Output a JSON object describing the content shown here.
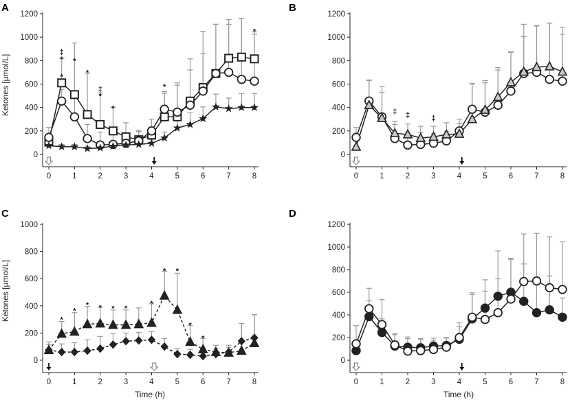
{
  "chart_data": [
    {
      "panel": "A",
      "type": "line",
      "ylabel": "Ketones [µmol/L]",
      "xlabel": "",
      "xlim": [
        0,
        8
      ],
      "ylim": [
        0,
        1200
      ],
      "yticks": [
        0,
        200,
        400,
        600,
        800,
        1000,
        1200
      ],
      "xticks": [
        0,
        1,
        2,
        3,
        4,
        5,
        6,
        7,
        8
      ],
      "series": [
        {
          "name": "square",
          "marker": "square",
          "dash": false,
          "fill": "#ffffff",
          "stroke": "#222222",
          "err": "#9a9a9a",
          "x": [
            0,
            0.5,
            1,
            1.5,
            2,
            2.5,
            3,
            3.5,
            4,
            4.5,
            5,
            5.5,
            6,
            6.5,
            7,
            7.5,
            8
          ],
          "y": [
            105,
            610,
            510,
            340,
            255,
            200,
            150,
            125,
            165,
            320,
            320,
            455,
            570,
            690,
            820,
            830,
            815
          ],
          "err_up": [
            45,
            210,
            440,
            350,
            270,
            200,
            120,
            80,
            70,
            200,
            290,
            360,
            480,
            420,
            290,
            330,
            230
          ]
        },
        {
          "name": "circle",
          "marker": "circle",
          "dash": false,
          "fill": "#ffffff",
          "stroke": "#222222",
          "err": "#9a9a9a",
          "x": [
            0,
            0.5,
            1,
            1.5,
            2,
            2.5,
            3,
            3.5,
            4,
            4.5,
            5,
            5.5,
            6,
            6.5,
            7,
            7.5,
            8
          ],
          "y": [
            145,
            455,
            320,
            135,
            80,
            85,
            95,
            115,
            200,
            385,
            360,
            420,
            540,
            690,
            700,
            640,
            625
          ],
          "err_up": [
            85,
            100,
            180,
            120,
            110,
            100,
            80,
            80,
            100,
            150,
            230,
            300,
            320,
            420,
            450,
            520,
            400
          ]
        },
        {
          "name": "star",
          "marker": "star",
          "dash": false,
          "fill": "#222222",
          "stroke": "#222222",
          "err": "#9a9a9a",
          "x": [
            0,
            0.5,
            1,
            1.5,
            2,
            2.5,
            3,
            3.5,
            4,
            4.5,
            5,
            5.5,
            6,
            6.5,
            7,
            7.5,
            8
          ],
          "y": [
            75,
            65,
            65,
            50,
            55,
            70,
            80,
            85,
            95,
            140,
            225,
            255,
            305,
            405,
            390,
            400,
            400
          ],
          "err_up": [
            25,
            20,
            20,
            20,
            20,
            25,
            25,
            25,
            30,
            50,
            80,
            100,
            100,
            110,
            90,
            120,
            120
          ]
        }
      ],
      "annotations": [
        {
          "x": 0.5,
          "y": 815,
          "text": "*"
        },
        {
          "x": 0.5,
          "y": 875,
          "text": "‡"
        },
        {
          "x": 0.5,
          "y": 665,
          "text": "*"
        },
        {
          "x": 1,
          "y": 800,
          "text": "*"
        },
        {
          "x": 1.5,
          "y": 700,
          "text": "*"
        },
        {
          "x": 2,
          "y": 500,
          "text": "*"
        },
        {
          "x": 2,
          "y": 560,
          "text": "‡"
        },
        {
          "x": 2.5,
          "y": 395,
          "text": "*"
        },
        {
          "x": 4.5,
          "y": 580,
          "text": "*"
        },
        {
          "x": 8,
          "y": 1050,
          "text": "*"
        }
      ],
      "arrows": [
        {
          "x": 0,
          "style": "open"
        },
        {
          "x": 4.1,
          "style": "solid"
        }
      ]
    },
    {
      "panel": "B",
      "type": "line",
      "ylabel": "",
      "xlabel": "",
      "xlim": [
        0,
        8
      ],
      "ylim": [
        0,
        1200
      ],
      "yticks": [
        0,
        200,
        400,
        600,
        800,
        1000,
        1200
      ],
      "xticks": [
        0,
        1,
        2,
        3,
        4,
        5,
        6,
        7,
        8
      ],
      "series": [
        {
          "name": "circle",
          "marker": "circle",
          "dash": false,
          "fill": "#ffffff",
          "stroke": "#222222",
          "err": "#9a9a9a",
          "x": [
            0,
            0.5,
            1,
            1.5,
            2,
            2.5,
            3,
            3.5,
            4,
            4.5,
            5,
            5.5,
            6,
            6.5,
            7,
            7.5,
            8
          ],
          "y": [
            145,
            455,
            320,
            135,
            80,
            85,
            95,
            115,
            200,
            385,
            360,
            420,
            540,
            690,
            700,
            640,
            625
          ],
          "err_up": [
            85,
            180,
            260,
            120,
            110,
            100,
            80,
            80,
            100,
            220,
            250,
            300,
            330,
            420,
            400,
            480,
            400
          ]
        },
        {
          "name": "triangle",
          "marker": "triangle",
          "dash": false,
          "fill": "#c8c8c8",
          "stroke": "#222222",
          "err": "#9a9a9a",
          "x": [
            0,
            0.5,
            1,
            1.5,
            2,
            2.5,
            3,
            3.5,
            4,
            4.5,
            5,
            5.5,
            6,
            6.5,
            7,
            7.5,
            8
          ],
          "y": [
            65,
            420,
            310,
            180,
            170,
            140,
            150,
            170,
            175,
            300,
            380,
            490,
            615,
            705,
            745,
            750,
            705
          ],
          "err_up": [
            100,
            210,
            220,
            100,
            90,
            100,
            90,
            100,
            90,
            300,
            250,
            250,
            260,
            300,
            350,
            370,
            380
          ]
        }
      ],
      "annotations": [
        {
          "x": 1.5,
          "y": 370,
          "text": "‡"
        },
        {
          "x": 2,
          "y": 340,
          "text": "‡"
        },
        {
          "x": 3,
          "y": 310,
          "text": "‡"
        }
      ],
      "arrows": [
        {
          "x": 0,
          "style": "open"
        },
        {
          "x": 4.1,
          "style": "solid"
        }
      ]
    },
    {
      "panel": "C",
      "type": "line",
      "ylabel": "Ketones [µmol/L]",
      "xlabel": "Time (h)",
      "xlim": [
        0,
        8
      ],
      "ylim": [
        0,
        1000
      ],
      "yticks": [
        0,
        200,
        400,
        600,
        800,
        1000
      ],
      "xticks": [
        0,
        1,
        2,
        3,
        4,
        5,
        6,
        7,
        8
      ],
      "series": [
        {
          "name": "triangle",
          "marker": "triangle",
          "dash": true,
          "fill": "#222222",
          "stroke": "#222222",
          "err": "#9a9a9a",
          "x": [
            0,
            0.5,
            1,
            1.5,
            2,
            2.5,
            3,
            3.5,
            4,
            4.5,
            5,
            5.5,
            6,
            6.5,
            7,
            7.5,
            8
          ],
          "y": [
            75,
            195,
            210,
            265,
            270,
            260,
            260,
            265,
            275,
            475,
            370,
            135,
            80,
            60,
            55,
            70,
            125
          ],
          "err_up": [
            40,
            90,
            140,
            130,
            120,
            110,
            110,
            120,
            140,
            180,
            270,
            120,
            80,
            50,
            40,
            200,
            210
          ]
        },
        {
          "name": "diamond",
          "marker": "diamond",
          "dash": true,
          "fill": "#222222",
          "stroke": "#222222",
          "err": "#9a9a9a",
          "x": [
            0,
            0.5,
            1,
            1.5,
            2,
            2.5,
            3,
            3.5,
            4,
            4.5,
            5,
            5.5,
            6,
            6.5,
            7,
            7.5,
            8
          ],
          "y": [
            75,
            60,
            60,
            70,
            85,
            115,
            140,
            145,
            150,
            100,
            45,
            40,
            30,
            45,
            60,
            140,
            165
          ],
          "err_up": [
            60,
            60,
            70,
            80,
            90,
            80,
            60,
            60,
            60,
            60,
            40,
            40,
            30,
            40,
            50,
            130,
            170
          ]
        }
      ],
      "annotations": [
        {
          "x": 0.5,
          "y": 300,
          "text": "*"
        },
        {
          "x": 1,
          "y": 365,
          "text": "*"
        },
        {
          "x": 1.5,
          "y": 410,
          "text": "*"
        },
        {
          "x": 2,
          "y": 390,
          "text": "*"
        },
        {
          "x": 2.5,
          "y": 385,
          "text": "*"
        },
        {
          "x": 3,
          "y": 385,
          "text": "*"
        },
        {
          "x": 4,
          "y": 420,
          "text": "*"
        },
        {
          "x": 4.5,
          "y": 660,
          "text": "*"
        },
        {
          "x": 5,
          "y": 660,
          "text": "*"
        },
        {
          "x": 5.5,
          "y": 260,
          "text": "*"
        },
        {
          "x": 6,
          "y": 165,
          "text": "*"
        }
      ],
      "arrows": [
        {
          "x": 0,
          "style": "solid"
        },
        {
          "x": 4.1,
          "style": "open"
        }
      ]
    },
    {
      "panel": "D",
      "type": "line",
      "ylabel": "",
      "xlabel": "Time (h)",
      "xlim": [
        0,
        8
      ],
      "ylim": [
        0,
        1200
      ],
      "yticks": [
        0,
        200,
        400,
        600,
        800,
        1000,
        1200
      ],
      "xticks": [
        0,
        1,
        2,
        3,
        4,
        5,
        6,
        7,
        8
      ],
      "series": [
        {
          "name": "filled-circle",
          "marker": "circle",
          "dash": false,
          "fill": "#222222",
          "stroke": "#222222",
          "err": "#9a9a9a",
          "x": [
            0,
            0.5,
            1,
            1.5,
            2,
            2.5,
            3,
            3.5,
            4,
            4.5,
            5,
            5.5,
            6,
            6.5,
            7,
            7.5,
            8
          ],
          "y": [
            85,
            385,
            245,
            125,
            115,
            110,
            125,
            130,
            185,
            365,
            460,
            565,
            600,
            520,
            420,
            445,
            380
          ],
          "err_up": [
            60,
            140,
            120,
            100,
            90,
            80,
            70,
            70,
            110,
            230,
            250,
            400,
            300,
            330,
            250,
            300,
            170
          ]
        },
        {
          "name": "open-circle",
          "marker": "circle",
          "dash": false,
          "fill": "#ffffff",
          "stroke": "#222222",
          "err": "#9a9a9a",
          "x": [
            0,
            0.5,
            1,
            1.5,
            2,
            2.5,
            3,
            3.5,
            4,
            4.5,
            5,
            5.5,
            6,
            6.5,
            7,
            7.5,
            8
          ],
          "y": [
            145,
            455,
            315,
            135,
            80,
            85,
            95,
            115,
            200,
            380,
            360,
            420,
            540,
            695,
            700,
            640,
            625
          ],
          "err_up": [
            160,
            180,
            220,
            100,
            110,
            100,
            80,
            80,
            130,
            200,
            250,
            300,
            350,
            420,
            420,
            450,
            420
          ]
        }
      ],
      "annotations": [],
      "arrows": [
        {
          "x": 0,
          "style": "open"
        },
        {
          "x": 4.1,
          "style": "solid"
        }
      ]
    }
  ]
}
